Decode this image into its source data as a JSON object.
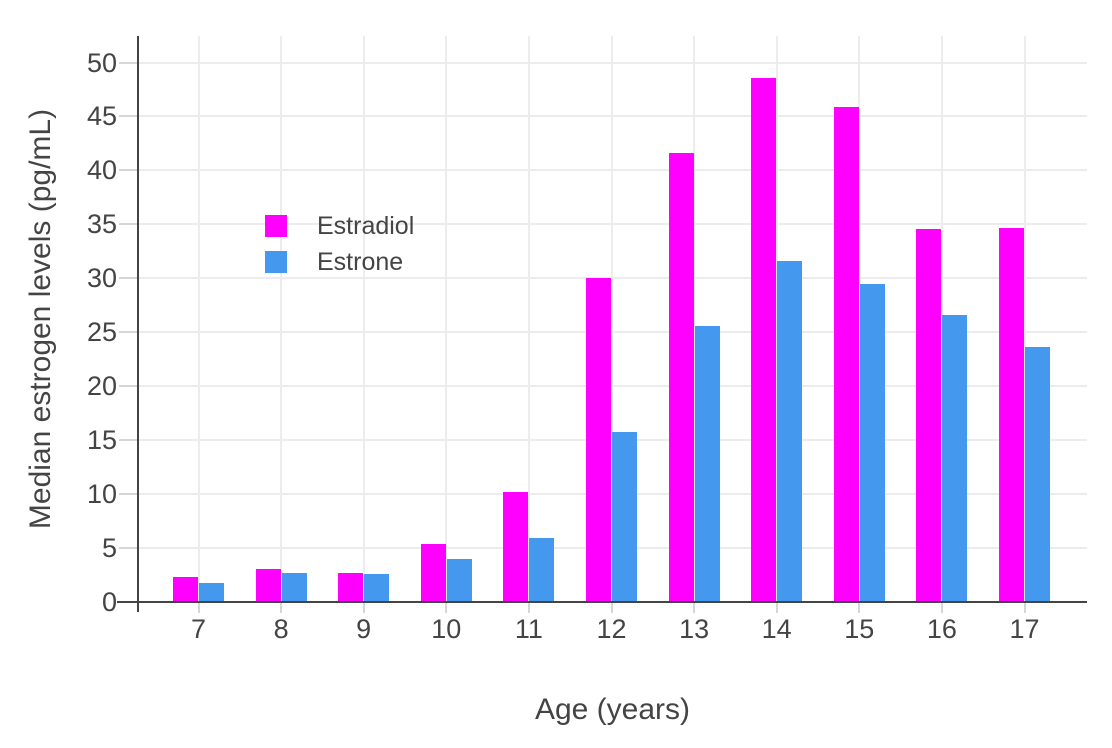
{
  "chart_data": {
    "type": "bar",
    "title": "",
    "xlabel": "Age (years)",
    "ylabel": "Median estrogen levels (pg/mL)",
    "categories": [
      7,
      8,
      9,
      10,
      11,
      12,
      13,
      14,
      15,
      16,
      17
    ],
    "series": [
      {
        "name": "Estradiol",
        "color": "#FF00FF",
        "values": [
          2.2,
          3.0,
          2.6,
          5.3,
          10.1,
          30.0,
          41.6,
          48.5,
          45.8,
          34.5,
          34.6
        ]
      },
      {
        "name": "Estrone",
        "color": "#4499EE",
        "values": [
          1.7,
          2.6,
          2.5,
          3.9,
          5.8,
          15.7,
          25.5,
          31.5,
          29.4,
          26.5,
          23.6
        ]
      }
    ],
    "ylim": [
      0,
      52.5
    ],
    "yticks": [
      0,
      5,
      10,
      15,
      20,
      25,
      30,
      35,
      40,
      45,
      50
    ],
    "grid": true,
    "legend_position": "inside-upper-left",
    "background_color": "#FFFFFF",
    "axis_color": "#444444",
    "grid_color": "#ECECEC",
    "tick_color": "#D6D6D6",
    "text_color": "#444444"
  }
}
